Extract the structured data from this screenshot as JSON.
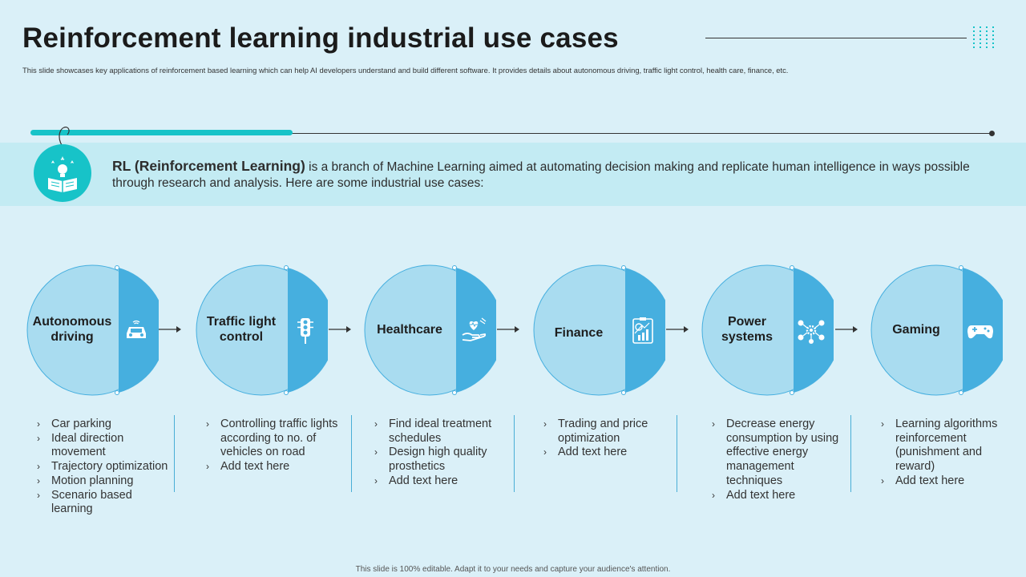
{
  "slide": {
    "title": "Reinforcement learning industrial use cases",
    "subtitle": "This slide showcases key applications of reinforcement based learning which can help AI developers understand and build different software. It provides details about autonomous driving, traffic light control, health care, finance, etc.",
    "banner_bold": "RL (Reinforcement Learning)",
    "banner_text": " is a branch of Machine Learning aimed at automating decision making and replicate human intelligence in ways possible through research and analysis. Here are some industrial use cases:",
    "footer": "This slide is 100% editable. Adapt it to your needs and capture your audience's attention."
  },
  "colors": {
    "accent": "#17c3c8",
    "circle_light": "#a9dcf0",
    "circle_dark": "#46afdf",
    "background": "#daf0f8",
    "banner": "#c3ebf3"
  },
  "cases": [
    {
      "label_1": "Autonomous",
      "label_2": "driving",
      "icon": "car-icon",
      "bullets": [
        "Car parking",
        "Ideal direction movement",
        "Trajectory optimization",
        "Motion planning",
        "Scenario based learning"
      ]
    },
    {
      "label_1": "Traffic light",
      "label_2": "control",
      "icon": "traffic-light-icon",
      "bullets": [
        "Controlling traffic lights according to no. of vehicles on road",
        "Add text here"
      ]
    },
    {
      "label_1": "Healthcare",
      "label_2": "",
      "icon": "heart-hand-icon",
      "bullets": [
        "Find ideal treatment schedules",
        "Design high quality prosthetics",
        "Add text here"
      ]
    },
    {
      "label_1": "Finance",
      "label_2": "",
      "icon": "finance-chart-icon",
      "bullets": [
        "Trading and price optimization",
        "Add text here"
      ]
    },
    {
      "label_1": "Power",
      "label_2": "systems",
      "icon": "network-gear-icon",
      "bullets": [
        "Decrease energy consumption by using effective energy management techniques",
        "Add text here"
      ]
    },
    {
      "label_1": "Gaming",
      "label_2": "",
      "icon": "gamepad-icon",
      "bullets": [
        "Learning algorithms reinforcement (punishment and reward)",
        "Add text here"
      ]
    }
  ]
}
